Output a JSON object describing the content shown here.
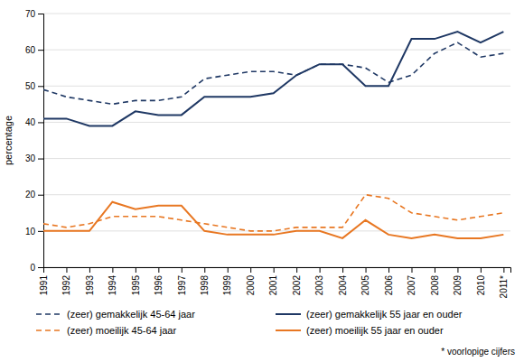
{
  "chart_data": {
    "type": "line",
    "y_label": "percentage",
    "x": [
      1991,
      1992,
      1993,
      1994,
      1995,
      1996,
      1997,
      1998,
      1999,
      2000,
      2001,
      2002,
      2003,
      2004,
      2005,
      2006,
      2007,
      2008,
      2009,
      2010,
      2011
    ],
    "series": [
      {
        "name": "(zeer) gemakkelijk 45-64 jaar",
        "color": "#1F3864",
        "line_style": "dashed",
        "values": [
          49,
          47,
          46,
          45,
          46,
          46,
          47,
          52,
          53,
          54,
          54,
          53,
          56,
          56,
          55,
          51,
          53,
          59,
          62,
          58,
          59
        ]
      },
      {
        "name": "(zeer) gemakkelijk 55 jaar en ouder",
        "color": "#1F3864",
        "line_style": "solid",
        "values": [
          41,
          41,
          39,
          39,
          43,
          42,
          42,
          47,
          47,
          47,
          48,
          53,
          56,
          56,
          50,
          50,
          63,
          63,
          65,
          62,
          65
        ]
      },
      {
        "name": "(zeer) moeilijk 45-64 jaar",
        "color": "#E87722",
        "line_style": "dashed",
        "values": [
          12,
          11,
          12,
          14,
          14,
          14,
          13,
          12,
          11,
          10,
          10,
          11,
          11,
          11,
          20,
          19,
          15,
          14,
          13,
          14,
          15
        ]
      },
      {
        "name": "(zeer) moeilijk 55 jaar en ouder",
        "color": "#E87722",
        "line_style": "solid",
        "values": [
          10,
          10,
          10,
          18,
          16,
          17,
          17,
          10,
          9,
          9,
          9,
          10,
          10,
          8,
          13,
          9,
          8,
          9,
          8,
          8,
          9
        ]
      }
    ],
    "xlim": [
      1991,
      2011.3
    ],
    "xticks": [
      1991,
      1992,
      1993,
      1994,
      1995,
      1996,
      1997,
      1998,
      1999,
      2000,
      2001,
      2002,
      2003,
      2004,
      2005,
      2006,
      2007,
      2008,
      2009,
      2010,
      {
        "value": 2011,
        "label": "2011*"
      }
    ],
    "ylim": [
      0,
      70
    ],
    "yticks": [
      0,
      10,
      20,
      30,
      40,
      50,
      60,
      70
    ],
    "grid": true,
    "legend": "bottom",
    "annotations": [
      "* voorlopige cijfers"
    ]
  }
}
